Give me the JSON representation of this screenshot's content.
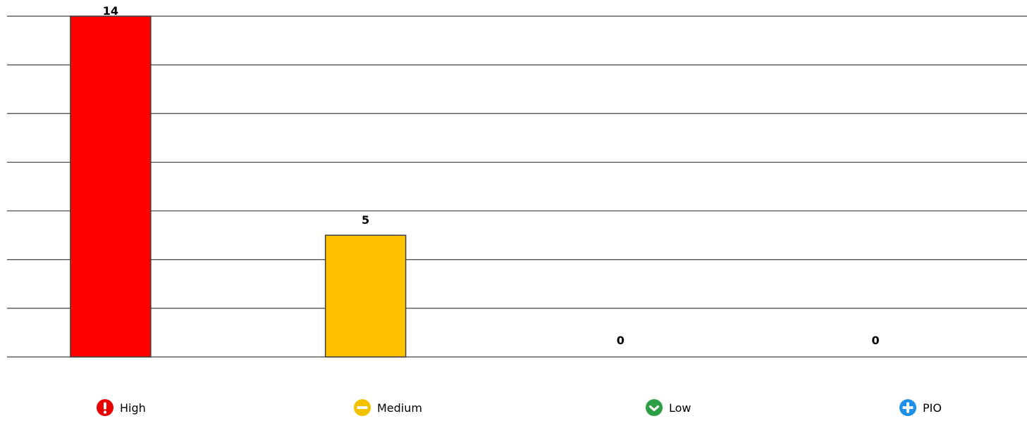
{
  "chart_data": {
    "type": "bar",
    "categories": [
      "High",
      "Medium",
      "Low",
      "PIO"
    ],
    "values": [
      14,
      5,
      0,
      0
    ],
    "ylim": [
      0,
      14
    ],
    "grid": true,
    "legend_placement": "bottom",
    "colors": [
      "#ff0000",
      "#ffc000",
      "#2ea043",
      "#1e90e8"
    ]
  },
  "legend": [
    {
      "label": "High",
      "icon": "exclamation-circle-icon",
      "color": "#e60000"
    },
    {
      "label": "Medium",
      "icon": "minus-circle-icon",
      "color": "#f2c200"
    },
    {
      "label": "Low",
      "icon": "check-circle-icon",
      "color": "#2e9e44"
    },
    {
      "label": "PIO",
      "icon": "plus-circle-icon",
      "color": "#1e90e8"
    }
  ]
}
